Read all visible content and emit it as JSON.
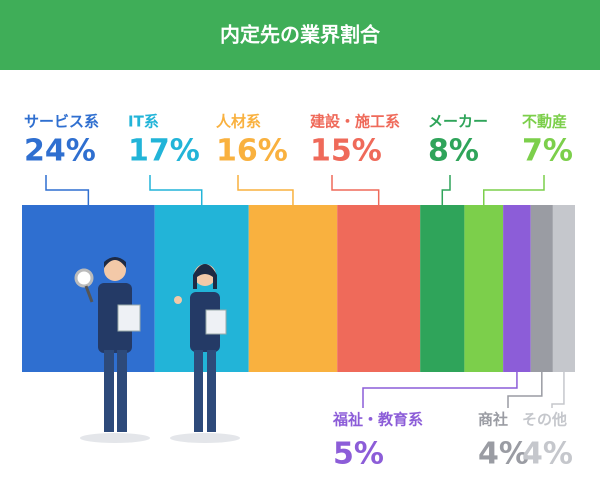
{
  "chart_data": {
    "type": "stacked-bar",
    "title": "内定先の業界割合",
    "categories": [
      "サービス系",
      "IT系",
      "人材系",
      "建設・施工系",
      "メーカー",
      "不動産",
      "福祉・教育系",
      "商社",
      "その他"
    ],
    "values": [
      24,
      17,
      16,
      15,
      8,
      7,
      5,
      4,
      4
    ],
    "value_labels": [
      "24%",
      "17%",
      "16%",
      "15%",
      "8%",
      "7%",
      "5%",
      "4%",
      "4%"
    ],
    "colors": [
      "#2f6fd0",
      "#22b4d8",
      "#f9b13f",
      "#ef6a5a",
      "#2fa45a",
      "#7ccf4b",
      "#8c5dd8",
      "#9a9ca3",
      "#c5c7cc"
    ]
  }
}
